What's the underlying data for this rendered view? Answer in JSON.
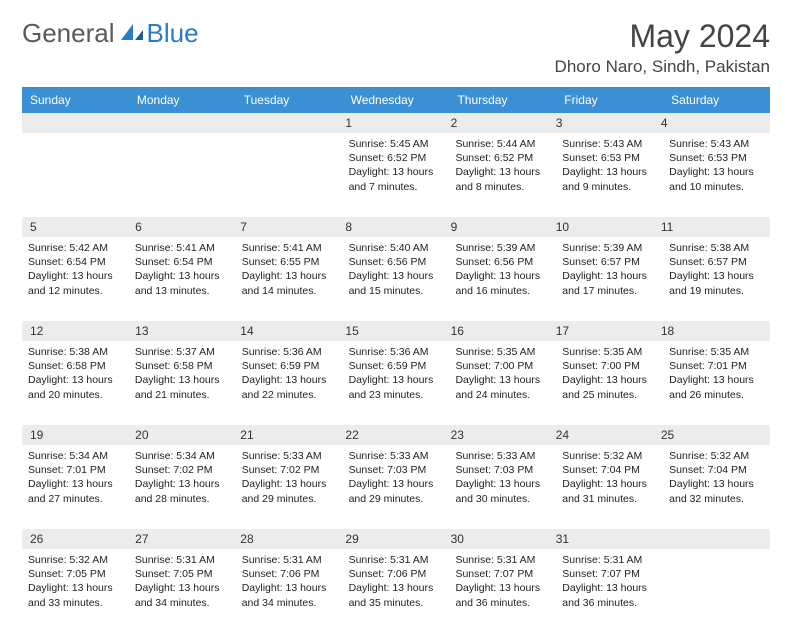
{
  "brand": {
    "part1": "General",
    "part2": "Blue"
  },
  "title": "May 2024",
  "location": "Dhoro Naro, Sindh, Pakistan",
  "colors": {
    "header_bg": "#3b8fd4",
    "header_fg": "#ffffff",
    "daynum_bg": "#ececec",
    "week_divider": "#3b6fa0",
    "logo_gray": "#5a5a5a",
    "logo_blue": "#2b7cc4",
    "text": "#222222",
    "background": "#ffffff"
  },
  "typography": {
    "title_fontsize": 32,
    "location_fontsize": 17,
    "dayhead_fontsize": 12,
    "detail_fontsize": 10.5,
    "logo_fontsize": 26
  },
  "day_headers": [
    "Sunday",
    "Monday",
    "Tuesday",
    "Wednesday",
    "Thursday",
    "Friday",
    "Saturday"
  ],
  "weeks": [
    [
      null,
      null,
      null,
      {
        "n": "1",
        "sr": "5:45 AM",
        "ss": "6:52 PM",
        "dl": "13 hours and 7 minutes."
      },
      {
        "n": "2",
        "sr": "5:44 AM",
        "ss": "6:52 PM",
        "dl": "13 hours and 8 minutes."
      },
      {
        "n": "3",
        "sr": "5:43 AM",
        "ss": "6:53 PM",
        "dl": "13 hours and 9 minutes."
      },
      {
        "n": "4",
        "sr": "5:43 AM",
        "ss": "6:53 PM",
        "dl": "13 hours and 10 minutes."
      }
    ],
    [
      {
        "n": "5",
        "sr": "5:42 AM",
        "ss": "6:54 PM",
        "dl": "13 hours and 12 minutes."
      },
      {
        "n": "6",
        "sr": "5:41 AM",
        "ss": "6:54 PM",
        "dl": "13 hours and 13 minutes."
      },
      {
        "n": "7",
        "sr": "5:41 AM",
        "ss": "6:55 PM",
        "dl": "13 hours and 14 minutes."
      },
      {
        "n": "8",
        "sr": "5:40 AM",
        "ss": "6:56 PM",
        "dl": "13 hours and 15 minutes."
      },
      {
        "n": "9",
        "sr": "5:39 AM",
        "ss": "6:56 PM",
        "dl": "13 hours and 16 minutes."
      },
      {
        "n": "10",
        "sr": "5:39 AM",
        "ss": "6:57 PM",
        "dl": "13 hours and 17 minutes."
      },
      {
        "n": "11",
        "sr": "5:38 AM",
        "ss": "6:57 PM",
        "dl": "13 hours and 19 minutes."
      }
    ],
    [
      {
        "n": "12",
        "sr": "5:38 AM",
        "ss": "6:58 PM",
        "dl": "13 hours and 20 minutes."
      },
      {
        "n": "13",
        "sr": "5:37 AM",
        "ss": "6:58 PM",
        "dl": "13 hours and 21 minutes."
      },
      {
        "n": "14",
        "sr": "5:36 AM",
        "ss": "6:59 PM",
        "dl": "13 hours and 22 minutes."
      },
      {
        "n": "15",
        "sr": "5:36 AM",
        "ss": "6:59 PM",
        "dl": "13 hours and 23 minutes."
      },
      {
        "n": "16",
        "sr": "5:35 AM",
        "ss": "7:00 PM",
        "dl": "13 hours and 24 minutes."
      },
      {
        "n": "17",
        "sr": "5:35 AM",
        "ss": "7:00 PM",
        "dl": "13 hours and 25 minutes."
      },
      {
        "n": "18",
        "sr": "5:35 AM",
        "ss": "7:01 PM",
        "dl": "13 hours and 26 minutes."
      }
    ],
    [
      {
        "n": "19",
        "sr": "5:34 AM",
        "ss": "7:01 PM",
        "dl": "13 hours and 27 minutes."
      },
      {
        "n": "20",
        "sr": "5:34 AM",
        "ss": "7:02 PM",
        "dl": "13 hours and 28 minutes."
      },
      {
        "n": "21",
        "sr": "5:33 AM",
        "ss": "7:02 PM",
        "dl": "13 hours and 29 minutes."
      },
      {
        "n": "22",
        "sr": "5:33 AM",
        "ss": "7:03 PM",
        "dl": "13 hours and 29 minutes."
      },
      {
        "n": "23",
        "sr": "5:33 AM",
        "ss": "7:03 PM",
        "dl": "13 hours and 30 minutes."
      },
      {
        "n": "24",
        "sr": "5:32 AM",
        "ss": "7:04 PM",
        "dl": "13 hours and 31 minutes."
      },
      {
        "n": "25",
        "sr": "5:32 AM",
        "ss": "7:04 PM",
        "dl": "13 hours and 32 minutes."
      }
    ],
    [
      {
        "n": "26",
        "sr": "5:32 AM",
        "ss": "7:05 PM",
        "dl": "13 hours and 33 minutes."
      },
      {
        "n": "27",
        "sr": "5:31 AM",
        "ss": "7:05 PM",
        "dl": "13 hours and 34 minutes."
      },
      {
        "n": "28",
        "sr": "5:31 AM",
        "ss": "7:06 PM",
        "dl": "13 hours and 34 minutes."
      },
      {
        "n": "29",
        "sr": "5:31 AM",
        "ss": "7:06 PM",
        "dl": "13 hours and 35 minutes."
      },
      {
        "n": "30",
        "sr": "5:31 AM",
        "ss": "7:07 PM",
        "dl": "13 hours and 36 minutes."
      },
      {
        "n": "31",
        "sr": "5:31 AM",
        "ss": "7:07 PM",
        "dl": "13 hours and 36 minutes."
      },
      null
    ]
  ],
  "labels": {
    "sunrise": "Sunrise: ",
    "sunset": "Sunset: ",
    "daylight": "Daylight: "
  }
}
